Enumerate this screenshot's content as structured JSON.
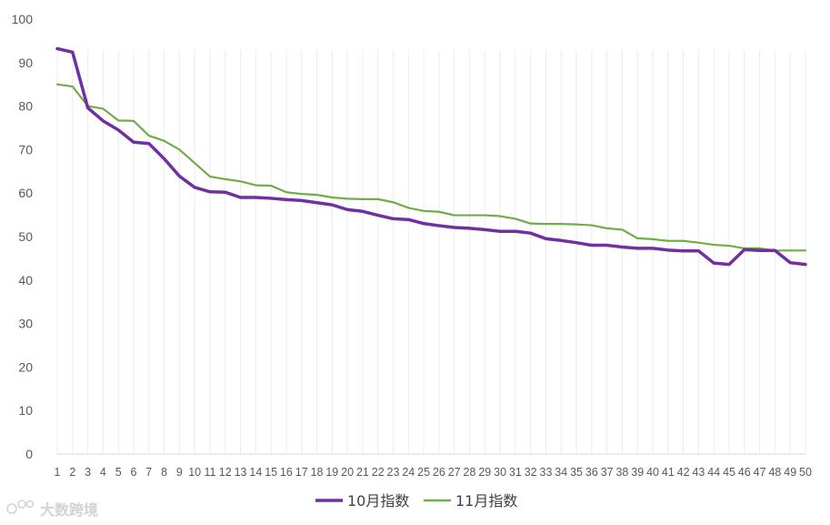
{
  "chart_data": {
    "type": "line",
    "title": "",
    "xlabel": "",
    "ylabel": "",
    "ylim": [
      0,
      100
    ],
    "yticks": [
      0,
      10,
      20,
      30,
      40,
      50,
      60,
      70,
      80,
      90,
      100
    ],
    "grid": "vertical lines per category",
    "legend_position": "bottom",
    "categories": [
      "1",
      "2",
      "3",
      "4",
      "5",
      "6",
      "7",
      "8",
      "9",
      "10",
      "11",
      "12",
      "13",
      "14",
      "15",
      "16",
      "17",
      "18",
      "19",
      "20",
      "21",
      "22",
      "23",
      "24",
      "25",
      "26",
      "27",
      "28",
      "29",
      "30",
      "31",
      "32",
      "33",
      "34",
      "35",
      "36",
      "37",
      "38",
      "39",
      "40",
      "41",
      "42",
      "43",
      "44",
      "45",
      "46",
      "47",
      "48",
      "49",
      "50"
    ],
    "series": [
      {
        "name": "10月指数",
        "color": "#7030A0",
        "values": [
          93.2,
          92.4,
          79.6,
          76.6,
          74.5,
          71.7,
          71.4,
          67.9,
          63.9,
          61.3,
          60.3,
          60.2,
          59.0,
          59.0,
          58.8,
          58.5,
          58.3,
          57.8,
          57.3,
          56.2,
          55.8,
          54.9,
          54.1,
          53.9,
          53.0,
          52.5,
          52.1,
          51.9,
          51.6,
          51.2,
          51.2,
          50.8,
          49.5,
          49.1,
          48.6,
          48.0,
          48.0,
          47.6,
          47.3,
          47.3,
          46.9,
          46.7,
          46.7,
          43.9,
          43.6,
          47.0,
          46.8,
          46.8,
          44.0,
          43.6
        ]
      },
      {
        "name": "11月指数",
        "color": "#70AD47",
        "values": [
          85.0,
          84.5,
          80.0,
          79.4,
          76.7,
          76.6,
          73.2,
          72.0,
          70.0,
          66.9,
          63.8,
          63.2,
          62.7,
          61.8,
          61.7,
          60.2,
          59.8,
          59.6,
          59.0,
          58.7,
          58.6,
          58.6,
          57.9,
          56.6,
          55.9,
          55.7,
          54.9,
          54.9,
          54.9,
          54.7,
          54.1,
          53.0,
          52.9,
          52.9,
          52.8,
          52.6,
          51.9,
          51.6,
          49.6,
          49.4,
          49.0,
          49.0,
          48.6,
          48.1,
          47.9,
          47.3,
          47.3,
          46.8,
          46.8,
          46.8
        ]
      }
    ]
  },
  "watermark": {
    "text": "大数跨境"
  }
}
